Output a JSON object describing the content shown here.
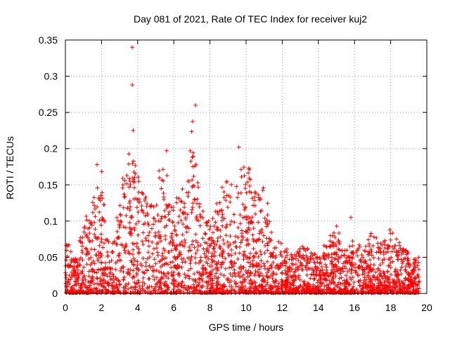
{
  "chart_data": {
    "type": "scatter",
    "title": "Day 081 of 2021, Rate Of TEC Index for receiver kuj2",
    "xlabel": "GPS time / hours",
    "ylabel": "ROTI / TECUs",
    "xlim": [
      0,
      20
    ],
    "ylim": [
      0,
      0.35
    ],
    "xticks": [
      "0",
      "2",
      "4",
      "6",
      "8",
      "10",
      "12",
      "14",
      "16",
      "18",
      "20"
    ],
    "yticks": [
      "0",
      "0.05",
      "0.1",
      "0.15",
      "0.2",
      "0.25",
      "0.3",
      "0.35"
    ],
    "grid": true,
    "marker": "+",
    "color": "#ff0000",
    "envelope": {
      "x": [
        0,
        0.5,
        1,
        1.5,
        2,
        2.5,
        3,
        3.5,
        4,
        4.5,
        5,
        5.5,
        6,
        6.5,
        7,
        7.5,
        8,
        8.5,
        9,
        9.5,
        10,
        10.5,
        11,
        11.5,
        12,
        12.5,
        13,
        13.5,
        14,
        14.5,
        15,
        15.5,
        16,
        16.5,
        17,
        17.5,
        18,
        18.5,
        19,
        19.6
      ],
      "peak": [
        0.09,
        0.05,
        0.1,
        0.13,
        0.17,
        0.06,
        0.14,
        0.2,
        0.17,
        0.14,
        0.16,
        0.2,
        0.13,
        0.15,
        0.25,
        0.13,
        0.1,
        0.14,
        0.16,
        0.15,
        0.2,
        0.14,
        0.16,
        0.08,
        0.07,
        0.06,
        0.07,
        0.06,
        0.06,
        0.07,
        0.1,
        0.06,
        0.08,
        0.06,
        0.09,
        0.07,
        0.09,
        0.07,
        0.06,
        0.05
      ]
    },
    "highlights": [
      {
        "x": 3.7,
        "y": 0.34
      },
      {
        "x": 3.7,
        "y": 0.288
      },
      {
        "x": 3.75,
        "y": 0.225
      },
      {
        "x": 7.2,
        "y": 0.26
      },
      {
        "x": 9.6,
        "y": 0.202
      },
      {
        "x": 5.6,
        "y": 0.197
      },
      {
        "x": 1.75,
        "y": 0.178
      },
      {
        "x": 15.8,
        "y": 0.105
      }
    ]
  }
}
